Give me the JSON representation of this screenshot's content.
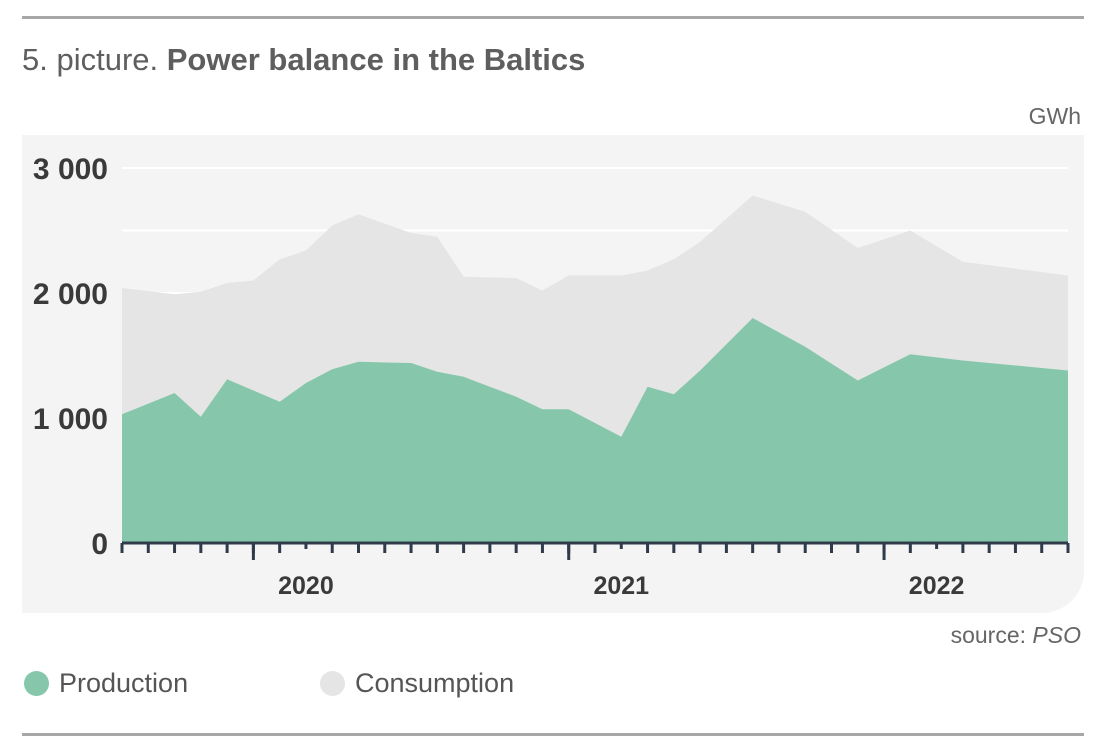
{
  "header": {
    "title_prefix": "5. picture.",
    "title": "Power balance in the Baltics"
  },
  "unit_label": "GWh",
  "source": {
    "prefix": "source:",
    "name": "PSO"
  },
  "colors": {
    "production": "#86c7ab",
    "consumption": "#e6e5e6",
    "axis": "#2f3b4a",
    "grid": "#ffffff",
    "text_dark": "#3a3a3a"
  },
  "chart_data": {
    "type": "area",
    "x_label": "",
    "y_label": "GWh",
    "ylim": [
      0,
      3000
    ],
    "y_ticks": [
      {
        "value": 0,
        "label": "0"
      },
      {
        "value": 1000,
        "label": "1 000"
      },
      {
        "value": 2000,
        "label": "2 000"
      },
      {
        "value": 3000,
        "label": "3 000"
      }
    ],
    "x_start": "2019-08",
    "x_end": "2022-08",
    "year_labels": [
      {
        "label": "2020",
        "at": "2020-03"
      },
      {
        "label": "2021",
        "at": "2021-03"
      },
      {
        "label": "2022",
        "at": "2022-03"
      }
    ],
    "grid": true,
    "legend_position": "bottom-left",
    "months": [
      "2019-08",
      "2019-09",
      "2019-10",
      "2019-11",
      "2019-12",
      "2020-01",
      "2020-02",
      "2020-03",
      "2020-04",
      "2020-05",
      "2020-06",
      "2020-07",
      "2020-08",
      "2020-09",
      "2020-10",
      "2020-11",
      "2020-12",
      "2021-01",
      "2021-02",
      "2021-03",
      "2021-04",
      "2021-05",
      "2021-06",
      "2021-07",
      "2021-08",
      "2021-09",
      "2021-10",
      "2021-11",
      "2021-12",
      "2022-01",
      "2022-02",
      "2022-03",
      "2022-04",
      "2022-05",
      "2022-06",
      "2022-07",
      "2022-08"
    ],
    "series": [
      {
        "name": "Consumption",
        "values": [
          2040,
          1990,
          2010,
          2080,
          2100,
          2270,
          2340,
          2540,
          2630,
          2480,
          2450,
          2130,
          2120,
          2020,
          2140,
          2140,
          2180,
          2270,
          2410,
          2780,
          2650,
          2360,
          2500,
          2250,
          2140
        ]
      },
      {
        "name": "Production",
        "values": [
          1030,
          1200,
          1010,
          1310,
          1220,
          1130,
          1280,
          1390,
          1450,
          1440,
          1370,
          1330,
          1170,
          1070,
          1070,
          850,
          1250,
          1190,
          1380,
          1800,
          1570,
          1300,
          1510,
          1460,
          1380
        ]
      }
    ],
    "sample_months": [
      "2019-08",
      "2019-10",
      "2019-11",
      "2019-12",
      "2020-01",
      "2020-02",
      "2020-03",
      "2020-04",
      "2020-05",
      "2020-07",
      "2020-08",
      "2020-09",
      "2020-11",
      "2020-12",
      "2021-01",
      "2021-03",
      "2021-04",
      "2021-05",
      "2021-06",
      "2021-08",
      "2021-10",
      "2021-12",
      "2022-02",
      "2022-04",
      "2022-08"
    ]
  }
}
